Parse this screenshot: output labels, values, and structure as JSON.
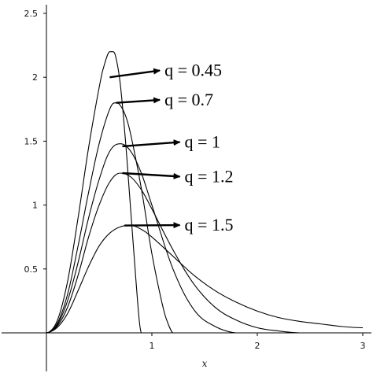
{
  "chart_data": {
    "type": "line",
    "title": "",
    "xlabel": "x",
    "ylabel": "",
    "xlim": [
      0,
      3
    ],
    "ylim": [
      0,
      2.5
    ],
    "grid": false,
    "legend": "none",
    "x_ticks": [
      {
        "value": 1,
        "label": "1"
      },
      {
        "value": 2,
        "label": "2"
      },
      {
        "value": 3,
        "label": "3"
      }
    ],
    "y_ticks": [
      {
        "value": 0.5,
        "label": "0.5"
      },
      {
        "value": 1,
        "label": "1"
      },
      {
        "value": 1.5,
        "label": "1.5"
      },
      {
        "value": 2,
        "label": "2"
      },
      {
        "value": 2.5,
        "label": "2.5"
      }
    ],
    "series": [
      {
        "q": 0.45,
        "x": [
          0,
          0.1,
          0.2,
          0.3,
          0.4,
          0.5,
          0.55,
          0.6,
          0.63,
          0.66,
          0.7,
          0.75,
          0.8,
          0.85,
          0.88,
          0.9
        ],
        "y": [
          0,
          0.09,
          0.4,
          0.9,
          1.45,
          1.92,
          2.1,
          2.2,
          2.2,
          2.15,
          1.95,
          1.5,
          0.95,
          0.4,
          0.1,
          0
        ]
      },
      {
        "q": 0.7,
        "x": [
          0,
          0.1,
          0.2,
          0.3,
          0.4,
          0.5,
          0.6,
          0.66,
          0.7,
          0.75,
          0.8,
          0.9,
          1.0,
          1.1,
          1.15,
          1.2
        ],
        "y": [
          0,
          0.07,
          0.3,
          0.68,
          1.1,
          1.48,
          1.75,
          1.8,
          1.78,
          1.7,
          1.55,
          1.13,
          0.62,
          0.22,
          0.08,
          0
        ]
      },
      {
        "q": 1,
        "x": [
          0,
          0.1,
          0.2,
          0.3,
          0.4,
          0.5,
          0.6,
          0.7,
          0.8,
          0.9,
          1.0,
          1.2,
          1.4,
          1.6,
          1.8
        ],
        "y": [
          0,
          0.06,
          0.25,
          0.55,
          0.9,
          1.2,
          1.42,
          1.48,
          1.42,
          1.25,
          1.0,
          0.5,
          0.18,
          0.05,
          0
        ]
      },
      {
        "q": 1.2,
        "x": [
          0,
          0.1,
          0.2,
          0.3,
          0.4,
          0.5,
          0.6,
          0.7,
          0.8,
          0.9,
          1.0,
          1.2,
          1.4,
          1.6,
          1.8,
          2.0,
          2.2,
          2.4
        ],
        "y": [
          0,
          0.05,
          0.2,
          0.45,
          0.75,
          1.0,
          1.18,
          1.25,
          1.22,
          1.12,
          0.97,
          0.65,
          0.38,
          0.2,
          0.1,
          0.04,
          0.015,
          0
        ]
      },
      {
        "q": 1.5,
        "x": [
          0,
          0.1,
          0.2,
          0.3,
          0.4,
          0.5,
          0.6,
          0.7,
          0.8,
          0.9,
          1.0,
          1.2,
          1.4,
          1.6,
          1.8,
          2.0,
          2.2,
          2.4,
          2.6,
          2.8,
          3.0
        ],
        "y": [
          0,
          0.04,
          0.15,
          0.33,
          0.52,
          0.68,
          0.78,
          0.83,
          0.84,
          0.81,
          0.75,
          0.6,
          0.45,
          0.33,
          0.24,
          0.17,
          0.12,
          0.09,
          0.07,
          0.05,
          0.04
        ]
      }
    ],
    "annotations": [
      {
        "label": "q = 0.45",
        "arrow_to": {
          "x": 0.6,
          "y": 2.0
        },
        "text_at": {
          "x": 1.12,
          "y": 2.01
        }
      },
      {
        "label": "q = 0.7",
        "arrow_to": {
          "x": 0.66,
          "y": 1.8
        },
        "text_at": {
          "x": 1.12,
          "y": 1.78
        }
      },
      {
        "label": "q = 1",
        "arrow_to": {
          "x": 0.72,
          "y": 1.46
        },
        "text_at": {
          "x": 1.31,
          "y": 1.45
        }
      },
      {
        "label": "q = 1.2",
        "arrow_to": {
          "x": 0.72,
          "y": 1.25
        },
        "text_at": {
          "x": 1.31,
          "y": 1.18
        }
      },
      {
        "label": "q = 1.5",
        "arrow_to": {
          "x": 0.74,
          "y": 0.84
        },
        "text_at": {
          "x": 1.31,
          "y": 0.8
        }
      }
    ]
  }
}
